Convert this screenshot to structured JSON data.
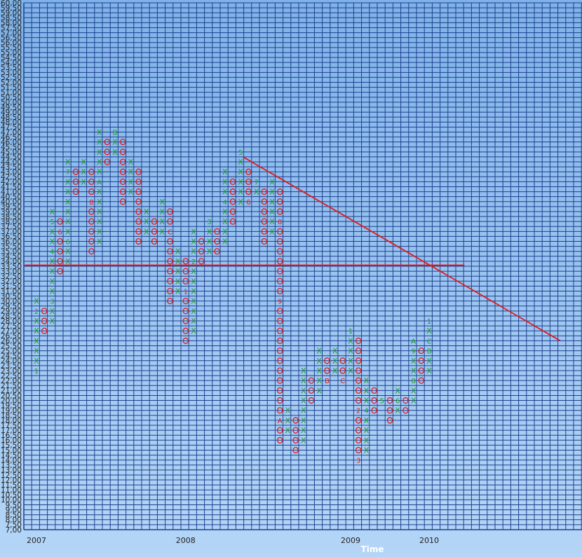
{
  "chart_data": {
    "type": "point-and-figure",
    "xlabel": "Time",
    "ylim": [
      7.0,
      60.0
    ],
    "box_size": 1,
    "y_ticks_step": 0.5,
    "x_ticks": [
      {
        "label": "2007",
        "col": 0
      },
      {
        "label": "2008",
        "col": 19
      },
      {
        "label": "2009",
        "col": 40
      },
      {
        "label": "2010",
        "col": 50
      }
    ],
    "colors": {
      "x": "#1e9a2a",
      "o": "#e21a1a",
      "grid": "#1f3f8f",
      "lines": "#e21a1a"
    },
    "columns": [
      {
        "col": 0,
        "type": "X",
        "low": 23,
        "high": 30,
        "marks": {
          "23": "1",
          "29": "2"
        }
      },
      {
        "col": 1,
        "type": "O",
        "low": 27,
        "high": 29,
        "marks": {}
      },
      {
        "col": 2,
        "type": "X",
        "low": 28,
        "high": 39,
        "marks": {
          "30": "3",
          "35": "4",
          "38": "5"
        }
      },
      {
        "col": 3,
        "type": "O",
        "low": 33,
        "high": 38,
        "marks": {
          "37": "6"
        }
      },
      {
        "col": 4,
        "type": "X",
        "low": 34,
        "high": 44,
        "marks": {
          "36": "6",
          "43": "7"
        }
      },
      {
        "col": 5,
        "type": "O",
        "low": 41,
        "high": 43,
        "marks": {}
      },
      {
        "col": 6,
        "type": "X",
        "low": 42,
        "high": 44,
        "marks": {}
      },
      {
        "col": 7,
        "type": "O",
        "low": 35,
        "high": 43,
        "marks": {
          "40": "8"
        }
      },
      {
        "col": 8,
        "type": "X",
        "low": 36,
        "high": 47,
        "marks": {
          "42": "A"
        }
      },
      {
        "col": 9,
        "type": "O",
        "low": 44,
        "high": 46,
        "marks": {}
      },
      {
        "col": 10,
        "type": "X",
        "low": 45,
        "high": 47,
        "marks": {
          "47": "B"
        }
      },
      {
        "col": 11,
        "type": "O",
        "low": 40,
        "high": 46,
        "marks": {}
      },
      {
        "col": 12,
        "type": "X",
        "low": 41,
        "high": 44,
        "marks": {}
      },
      {
        "col": 13,
        "type": "O",
        "low": 36,
        "high": 43,
        "marks": {}
      },
      {
        "col": 14,
        "type": "X",
        "low": 37,
        "high": 39,
        "marks": {}
      },
      {
        "col": 15,
        "type": "O",
        "low": 36,
        "high": 38,
        "marks": {}
      },
      {
        "col": 16,
        "type": "X",
        "low": 37,
        "high": 40,
        "marks": {}
      },
      {
        "col": 17,
        "type": "O",
        "low": 30,
        "high": 39,
        "marks": {
          "37": "C"
        }
      },
      {
        "col": 18,
        "type": "X",
        "low": 31,
        "high": 35,
        "marks": {}
      },
      {
        "col": 19,
        "type": "O",
        "low": 26,
        "high": 34,
        "marks": {
          "31": "1"
        }
      },
      {
        "col": 20,
        "type": "X",
        "low": 27,
        "high": 37,
        "marks": {
          "34": "2"
        }
      },
      {
        "col": 21,
        "type": "O",
        "low": 34,
        "high": 36,
        "marks": {}
      },
      {
        "col": 22,
        "type": "X",
        "low": 35,
        "high": 38,
        "marks": {
          "38": "3"
        }
      },
      {
        "col": 23,
        "type": "O",
        "low": 35,
        "high": 37,
        "marks": {}
      },
      {
        "col": 24,
        "type": "X",
        "low": 36,
        "high": 43,
        "marks": {
          "40": "4"
        }
      },
      {
        "col": 25,
        "type": "O",
        "low": 38,
        "high": 42,
        "marks": {}
      },
      {
        "col": 26,
        "type": "X",
        "low": 40,
        "high": 45,
        "marks": {
          "45": "5"
        }
      },
      {
        "col": 27,
        "type": "O",
        "low": 40,
        "high": 43,
        "marks": {
          "40": "6"
        }
      },
      {
        "col": 28,
        "type": "X",
        "low": 41,
        "high": 42,
        "marks": {
          "42": "7"
        }
      },
      {
        "col": 29,
        "type": "O",
        "low": 36,
        "high": 41,
        "marks": {}
      },
      {
        "col": 30,
        "type": "X",
        "low": 37,
        "high": 42,
        "marks": {}
      },
      {
        "col": 31,
        "type": "O",
        "low": 16,
        "high": 41,
        "marks": {
          "38": "8",
          "30": "9",
          "18": "A"
        }
      },
      {
        "col": 32,
        "type": "X",
        "low": 17,
        "high": 19,
        "marks": {}
      },
      {
        "col": 33,
        "type": "O",
        "low": 15,
        "high": 18,
        "marks": {}
      },
      {
        "col": 34,
        "type": "X",
        "low": 16,
        "high": 23,
        "marks": {}
      },
      {
        "col": 35,
        "type": "O",
        "low": 20,
        "high": 22,
        "marks": {}
      },
      {
        "col": 36,
        "type": "X",
        "low": 21,
        "high": 25,
        "marks": {}
      },
      {
        "col": 37,
        "type": "O",
        "low": 22,
        "high": 24,
        "marks": {
          "22": "B"
        }
      },
      {
        "col": 38,
        "type": "X",
        "low": 23,
        "high": 25,
        "marks": {}
      },
      {
        "col": 39,
        "type": "O",
        "low": 22,
        "high": 24,
        "marks": {
          "22": "C"
        }
      },
      {
        "col": 40,
        "type": "X",
        "low": 23,
        "high": 27,
        "marks": {
          "27": "1"
        }
      },
      {
        "col": 41,
        "type": "O",
        "low": 14,
        "high": 26,
        "marks": {
          "19": "2",
          "14": "3"
        }
      },
      {
        "col": 42,
        "type": "X",
        "low": 15,
        "high": 22,
        "marks": {
          "19": "4"
        }
      },
      {
        "col": 43,
        "type": "O",
        "low": 19,
        "high": 21,
        "marks": {}
      },
      {
        "col": 44,
        "type": "X",
        "low": 20,
        "high": 20,
        "marks": {
          "20": "5"
        }
      },
      {
        "col": 45,
        "type": "O",
        "low": 18,
        "high": 20,
        "marks": {}
      },
      {
        "col": 46,
        "type": "X",
        "low": 19,
        "high": 21,
        "marks": {
          "20": "6"
        }
      },
      {
        "col": 47,
        "type": "O",
        "low": 19,
        "high": 20,
        "marks": {}
      },
      {
        "col": 48,
        "type": "X",
        "low": 20,
        "high": 26,
        "marks": {
          "22": "8",
          "25": "9",
          "26": "A"
        }
      },
      {
        "col": 49,
        "type": "O",
        "low": 22,
        "high": 25,
        "marks": {}
      },
      {
        "col": 50,
        "type": "X",
        "low": 23,
        "high": 28,
        "marks": {
          "25": "B",
          "26": "C",
          "28": "1"
        }
      }
    ],
    "lines": [
      {
        "name": "resistance-horizontal",
        "col_start": -1.5,
        "value_start": 33.6,
        "col_end": 54.5,
        "value_end": 33.6
      },
      {
        "name": "trend-down",
        "col_start": 26.3,
        "value_start": 44.5,
        "col_end": 66.7,
        "value_end": 26.0
      }
    ]
  }
}
